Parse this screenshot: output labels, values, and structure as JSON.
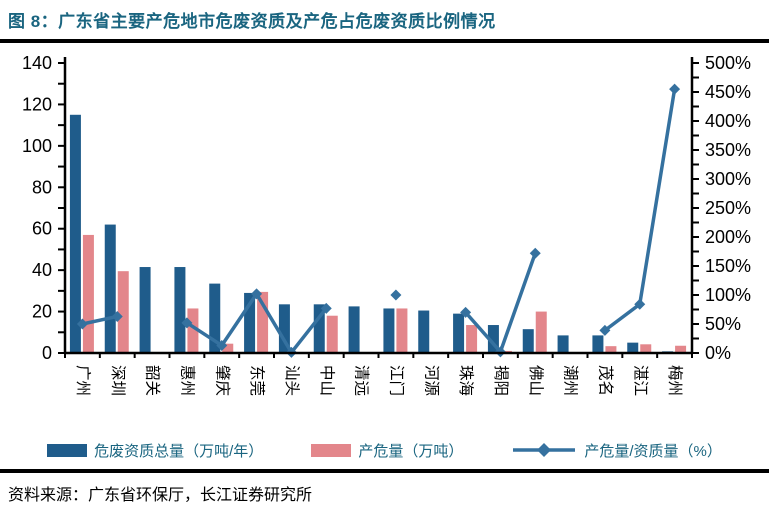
{
  "header": {
    "title": "图 8：广东省主要产危地市危废资质及产危占危废资质比例情况"
  },
  "source": {
    "text": "资料来源：广东省环保厅，长江证券研究所"
  },
  "colors": {
    "bar_primary": "#1F5C8B",
    "bar_secondary": "#E3868B",
    "line": "#35719F",
    "title_text": "#1A6580",
    "legend_text": "#1A6580",
    "axis_text": "#000000",
    "axis_line": "#000000",
    "rule": "#000000"
  },
  "legend": [
    {
      "label": "危废资质总量（万吨/年）",
      "type": "bar",
      "color_key": "bar_primary"
    },
    {
      "label": "产危量（万吨）",
      "type": "bar",
      "color_key": "bar_secondary"
    },
    {
      "label": "产危量/资质量（%）",
      "type": "line",
      "color_key": "line"
    }
  ],
  "chart_data": {
    "type": "bar",
    "subtype": "grouped-bars-with-line-overlay",
    "title": "广东省主要产危地市危废资质及产危占危废资质比例情况",
    "categories": [
      "广州",
      "深圳",
      "韶关",
      "惠州",
      "肇庆",
      "东莞",
      "汕头",
      "中山",
      "清远",
      "江门",
      "河源",
      "珠海",
      "揭阳",
      "佛山",
      "潮州",
      "茂名",
      "湛江",
      "梅州"
    ],
    "series": [
      {
        "name": "危废资质总量（万吨/年）",
        "type": "bar",
        "axis": "left",
        "values": [
          115,
          62,
          41.5,
          41.5,
          33.5,
          29,
          23.5,
          23.5,
          22.5,
          21.5,
          20.5,
          19,
          13.5,
          11.5,
          8.5,
          8.5,
          5,
          0.8
        ]
      },
      {
        "name": "产危量（万吨）",
        "type": "bar",
        "axis": "left",
        "values": [
          57,
          39.5,
          0,
          21.5,
          4.5,
          29.5,
          0.4,
          18,
          0,
          21.5,
          0,
          13.5,
          1,
          20,
          0,
          3.3,
          4.2,
          3.5
        ]
      },
      {
        "name": "产危量/资质量（%）",
        "type": "line",
        "axis": "right",
        "values": [
          50,
          63,
          null,
          52,
          13,
          102,
          1,
          77,
          null,
          100,
          null,
          70,
          2,
          172,
          null,
          39,
          84,
          455
        ]
      }
    ],
    "left_axis": {
      "min": 0,
      "max": 140,
      "label_step": 20,
      "tick_step": 10,
      "labels": [
        "0",
        "20",
        "40",
        "60",
        "80",
        "100",
        "120",
        "140"
      ]
    },
    "right_axis": {
      "min": 0,
      "max": 500,
      "label_step": 50,
      "tick_step": 25,
      "labels": [
        "0%",
        "50%",
        "100%",
        "150%",
        "200%",
        "250%",
        "300%",
        "350%",
        "400%",
        "450%",
        "500%"
      ]
    },
    "grid": false,
    "legend_position": "bottom"
  }
}
